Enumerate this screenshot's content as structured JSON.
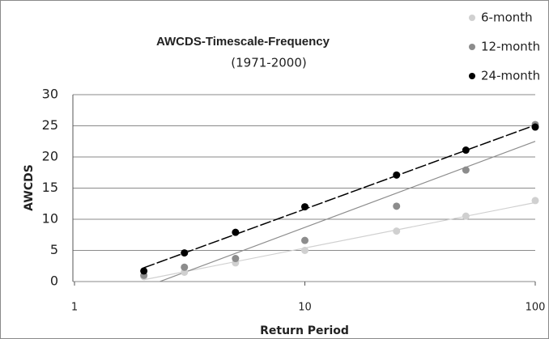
{
  "chart_data": {
    "type": "scatter",
    "title": "AWCDS-Timescale-Frequency",
    "subtitle": "(1971-2000)",
    "x_label": "Return Period",
    "y_label": "AWCDS",
    "x": [
      2,
      3,
      5,
      10,
      25,
      50,
      100
    ],
    "series": [
      {
        "name": "6-month",
        "color": "#d0d0d0",
        "values": [
          0.8,
          1.5,
          3.0,
          5.0,
          8.1,
          10.5,
          13.0
        ]
      },
      {
        "name": "12-month",
        "color": "#8c8c8c",
        "values": [
          1.0,
          2.3,
          3.7,
          6.6,
          12.1,
          17.9,
          25.2
        ]
      },
      {
        "name": "24-month",
        "color": "#000000",
        "values": [
          1.7,
          4.6,
          7.9,
          12.0,
          17.1,
          21.1,
          24.8
        ],
        "dashed": true
      }
    ],
    "trendline": "logarithmic",
    "xscale": "log",
    "xlim": [
      1,
      100
    ],
    "xticks": [
      1,
      10,
      100
    ],
    "ylim": [
      0,
      30
    ],
    "yticks": [
      0,
      5,
      10,
      15,
      20,
      25,
      30
    ],
    "grid": true,
    "legend": "upper right"
  }
}
